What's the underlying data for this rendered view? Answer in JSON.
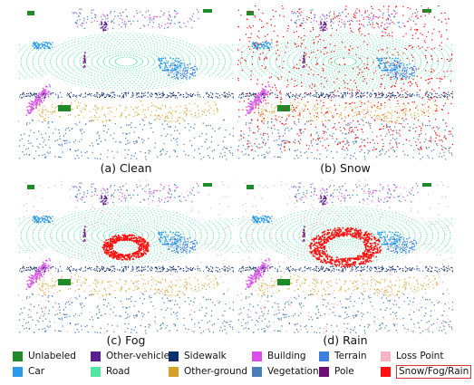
{
  "panels": [
    {
      "id": "clean",
      "caption": "(a) Clean"
    },
    {
      "id": "snow",
      "caption": "(b) Snow"
    },
    {
      "id": "fog",
      "caption": "(c) Fog"
    },
    {
      "id": "rain",
      "caption": "(d) Rain"
    }
  ],
  "legend": [
    {
      "label": "Unlabeled",
      "color": "#1f8a2a"
    },
    {
      "label": "Other-vehicle",
      "color": "#5a1f8f"
    },
    {
      "label": "Sidewalk",
      "color": "#0d2f6e"
    },
    {
      "label": "Building",
      "color": "#d94fe8"
    },
    {
      "label": "Terrain",
      "color": "#3f7fe0"
    },
    {
      "label": "Loss Point",
      "color": "#f4b6c4"
    },
    {
      "label": "Car",
      "color": "#2a9be8"
    },
    {
      "label": "Road",
      "color": "#52e6a0"
    },
    {
      "label": "Other-ground",
      "color": "#d6a12a"
    },
    {
      "label": "Vegetation",
      "color": "#4a7fb5"
    },
    {
      "label": "Pole",
      "color": "#6e0f74"
    },
    {
      "label": "Snow/Fog/Rain",
      "color": "#ff1010"
    }
  ]
}
